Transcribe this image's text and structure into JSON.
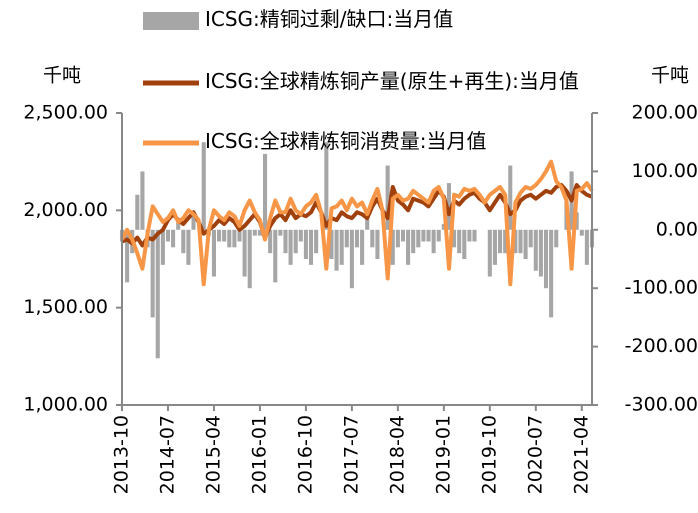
{
  "chart_data": {
    "type": "combo",
    "legend_position": "top",
    "y_label": "千吨",
    "y2_label": "千吨",
    "categories": [
      "2013-10",
      null,
      null,
      null,
      null,
      null,
      null,
      null,
      null,
      "2014-07",
      null,
      null,
      null,
      null,
      null,
      null,
      null,
      null,
      "2015-04",
      null,
      null,
      null,
      null,
      null,
      null,
      null,
      null,
      "2016-01",
      null,
      null,
      null,
      null,
      null,
      null,
      null,
      null,
      "2016-10",
      null,
      null,
      null,
      null,
      null,
      null,
      null,
      null,
      "2017-07",
      null,
      null,
      null,
      null,
      null,
      null,
      null,
      null,
      "2018-04",
      null,
      null,
      null,
      null,
      null,
      null,
      null,
      null,
      "2019-01",
      null,
      null,
      null,
      null,
      null,
      null,
      null,
      null,
      "2019-10",
      null,
      null,
      null,
      null,
      null,
      null,
      null,
      null,
      "2020-07",
      null,
      null,
      null,
      null,
      null,
      null,
      null,
      null,
      "2021-04",
      null,
      null
    ],
    "ylim": [
      1000,
      2500
    ],
    "yticks": [
      {
        "value": 1000,
        "label": "1,000.00"
      },
      {
        "value": 1500,
        "label": "1,500.00"
      },
      {
        "value": 2000,
        "label": "2,000.00"
      },
      {
        "value": 2500,
        "label": "2,500.00"
      }
    ],
    "y2lim": [
      -300,
      200
    ],
    "y2ticks": [
      {
        "value": -300,
        "label": "-300.00"
      },
      {
        "value": -200,
        "label": "-200.00"
      },
      {
        "value": -100,
        "label": "-100.00"
      },
      {
        "value": 0,
        "label": "0.00"
      },
      {
        "value": 100,
        "label": "100.00"
      },
      {
        "value": 200,
        "label": "200.00"
      }
    ],
    "series": [
      {
        "name": "ICSG:精铜过剩/缺口:当月值",
        "kind": "bar",
        "axis": "y2",
        "color": "#a6a6a6",
        "values": [
          -20,
          -90,
          -40,
          60,
          100,
          -30,
          -150,
          -220,
          -60,
          -20,
          -30,
          20,
          -40,
          -60,
          30,
          0,
          150,
          -10,
          -80,
          -20,
          -20,
          -30,
          -30,
          -20,
          -80,
          -100,
          -10,
          -10,
          130,
          -40,
          -90,
          -10,
          -40,
          -60,
          -40,
          -20,
          -50,
          -60,
          -40,
          0,
          150,
          -50,
          -70,
          -60,
          -30,
          -100,
          -30,
          -60,
          20,
          -30,
          -50,
          0,
          110,
          -60,
          -30,
          -20,
          -60,
          -40,
          -30,
          -20,
          -20,
          -40,
          -20,
          10,
          80,
          -30,
          -40,
          -50,
          -20,
          -20,
          0,
          0,
          -80,
          -60,
          -40,
          -40,
          110,
          -40,
          -40,
          -50,
          -30,
          -70,
          -80,
          -100,
          -150,
          -30,
          0,
          50,
          100,
          30,
          -10,
          -60,
          -30
        ]
      },
      {
        "name": "ICSG:全球精炼铜产量(原生+再生):当月值",
        "kind": "line",
        "color": "#a0410d",
        "values": [
          1840,
          1850,
          1830,
          1860,
          1820,
          1860,
          1850,
          1880,
          1900,
          1950,
          1980,
          1950,
          1930,
          1960,
          1990,
          1940,
          1880,
          1900,
          1920,
          1950,
          1930,
          1960,
          1940,
          1900,
          1920,
          1950,
          1980,
          1940,
          1860,
          1920,
          1960,
          1980,
          1950,
          2000,
          1960,
          1980,
          1970,
          1990,
          2040,
          1990,
          1920,
          1960,
          1950,
          1990,
          1970,
          1960,
          1990,
          1980,
          1960,
          2020,
          2060,
          2000,
          1960,
          2120,
          2050,
          2030,
          2000,
          2060,
          2050,
          2040,
          2020,
          2060,
          2100,
          2070,
          1980,
          2050,
          2030,
          2060,
          2080,
          2090,
          2060,
          2040,
          2000,
          2040,
          2080,
          2040,
          1980,
          2000,
          2050,
          2070,
          2080,
          2060,
          2080,
          2100,
          2090,
          2120,
          2130,
          2100,
          2050,
          2130,
          2100,
          2080,
          2070
        ]
      },
      {
        "name": "ICSG:全球精炼铜消费量:当月值",
        "kind": "line",
        "color": "#f79646",
        "values": [
          1850,
          1900,
          1850,
          1780,
          1700,
          1880,
          2020,
          1980,
          1940,
          1960,
          2000,
          1940,
          1960,
          2000,
          1980,
          1950,
          1620,
          1900,
          2000,
          1970,
          1950,
          1990,
          1970,
          1920,
          2000,
          2050,
          1990,
          1950,
          1850,
          1960,
          2050,
          1990,
          1990,
          2060,
          2000,
          1980,
          2020,
          2040,
          2080,
          1990,
          1700,
          2010,
          2020,
          2050,
          2000,
          2060,
          2020,
          2040,
          1980,
          2050,
          2110,
          2000,
          1650,
          2060,
          2080,
          2050,
          2060,
          2100,
          2080,
          2060,
          2040,
          2100,
          2120,
          2060,
          1700,
          2080,
          2070,
          2110,
          2100,
          2110,
          2080,
          2040,
          2080,
          2100,
          2120,
          2080,
          1620,
          2040,
          2090,
          2120,
          2110,
          2130,
          2160,
          2200,
          2250,
          2150,
          2120,
          2050,
          1700,
          2100,
          2110,
          2140,
          2100
        ]
      }
    ]
  }
}
